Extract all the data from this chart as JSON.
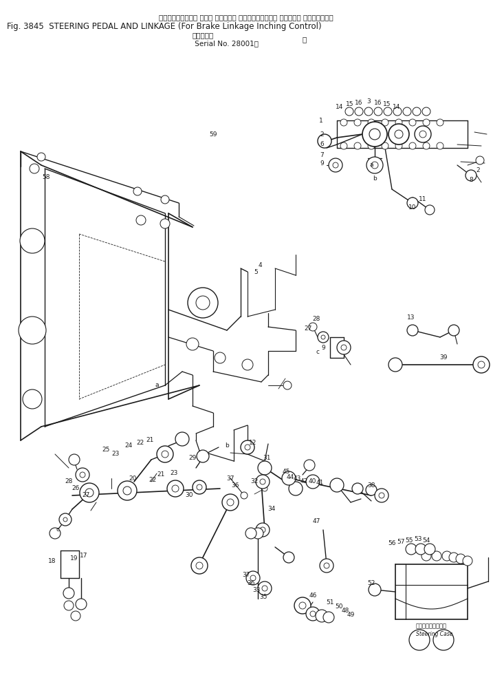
{
  "title_jp": "ステアリングペダル および リンケージ ブレーキリンケージ インチング コントロール用",
  "title_main": "Fig. 3845  STEERING PEDAL AND LINKAGE (For Brake Linkage Inching Control)",
  "serial_jp": "（適用号機",
  "serial_en": "Serial No. 28001～",
  "steering_case_jp": "ステアリングケース",
  "steering_case_en": "Steering Case",
  "bg": "#ffffff",
  "lc": "#1a1a1a",
  "fig_w": 7.17,
  "fig_h": 9.94,
  "dpi": 100
}
